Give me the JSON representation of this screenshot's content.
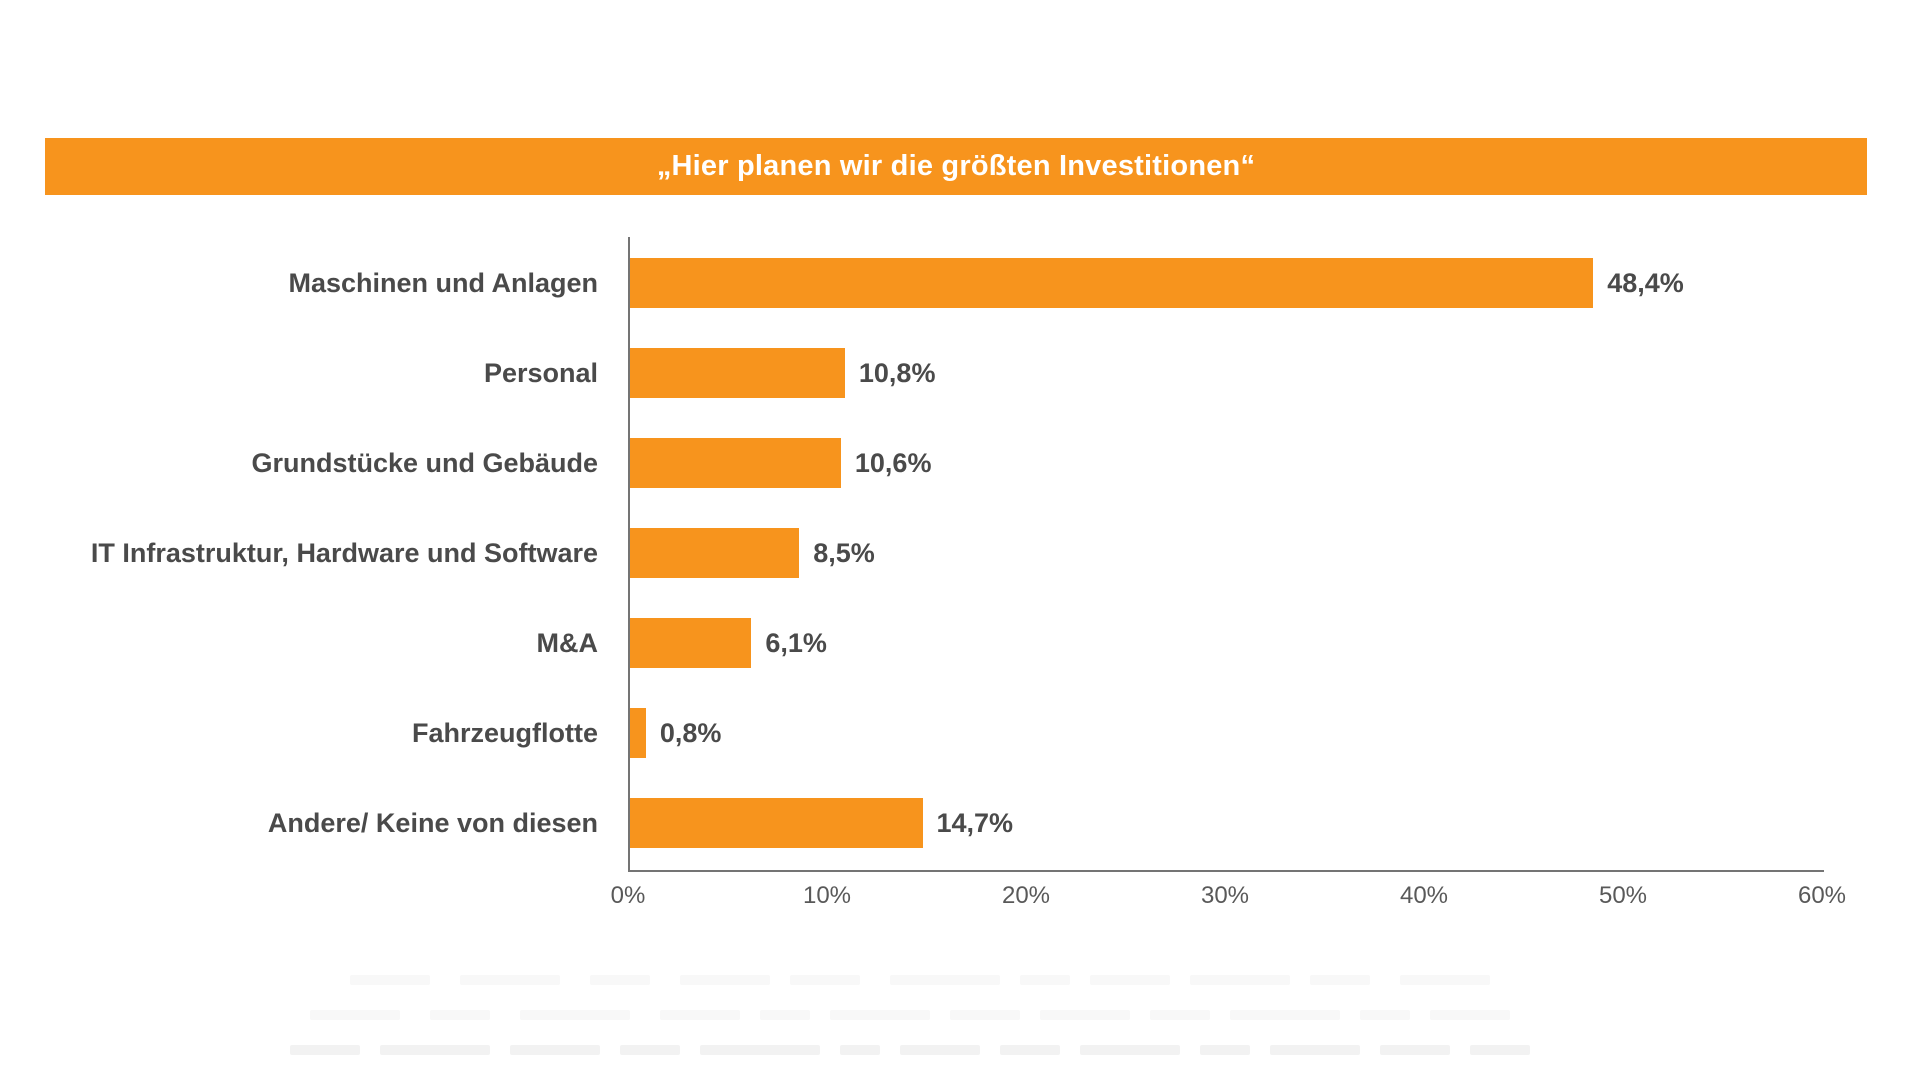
{
  "title_banner": {
    "text": "„Hier planen wir die größten Investitionen“",
    "bg_color": "#F7941D",
    "text_color": "#FFFFFF"
  },
  "chart_data": {
    "type": "bar",
    "orientation": "horizontal",
    "title": "„Hier planen wir die größten Investitionen“",
    "categories": [
      "Maschinen und Anlagen",
      "Personal",
      "Grundstücke und Gebäude",
      "IT Infrastruktur, Hardware und Software",
      "M&A",
      "Fahrzeugflotte",
      "Andere/ Keine von diesen"
    ],
    "values": [
      48.4,
      10.8,
      10.6,
      8.5,
      6.1,
      0.8,
      14.7
    ],
    "value_labels": [
      "48,4%",
      "10,8%",
      "10,6%",
      "8,5%",
      "6,1%",
      "0,8%",
      "14,7%"
    ],
    "x_axis": {
      "min": 0,
      "max": 60,
      "tick_step": 10,
      "tick_labels": [
        "0%",
        "10%",
        "20%",
        "30%",
        "40%",
        "50%",
        "60%"
      ],
      "unit": "%"
    },
    "bar_color": "#F7941D",
    "value_label_color": "#4A4A4A",
    "category_label_color": "#4A4A4A",
    "tick_label_color": "#595959",
    "axis_color": "#747474",
    "grid": false,
    "legend": false
  }
}
